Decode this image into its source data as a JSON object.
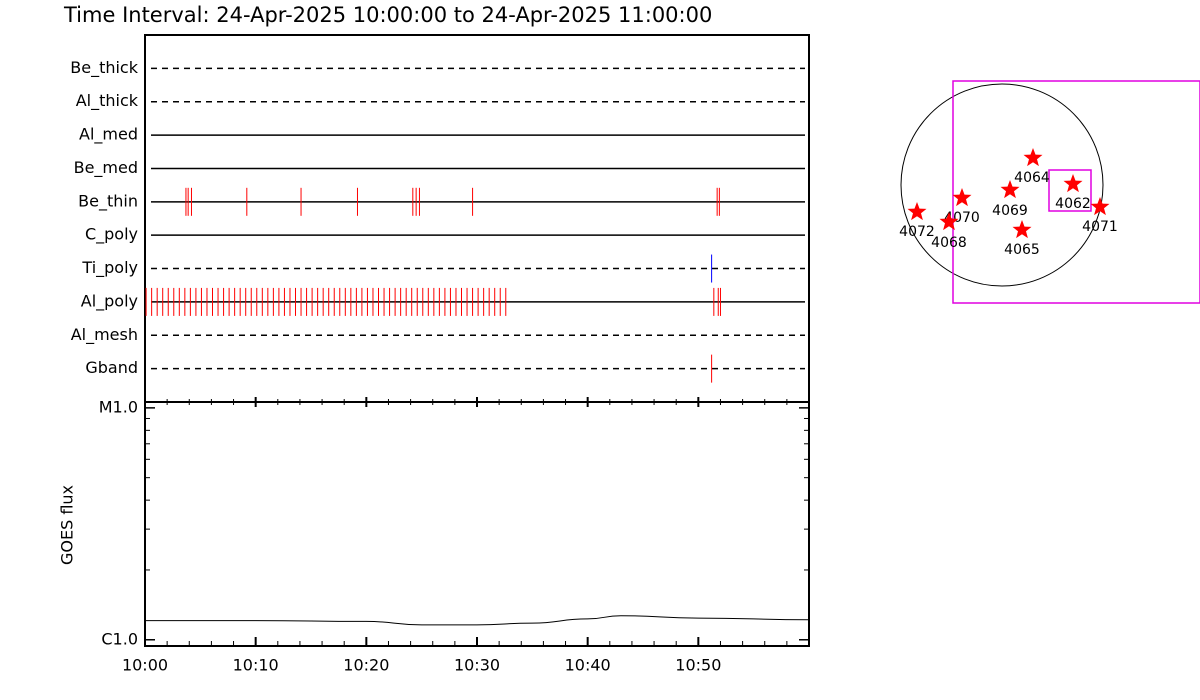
{
  "chart_data": {
    "type": "timeline",
    "title": "Time Interval: 24-Apr-2025 10:00:00 to 24-Apr-2025 11:00:00",
    "xlim": [
      0,
      60
    ],
    "xticks": [
      {
        "value": 0,
        "label": "10:00"
      },
      {
        "value": 10,
        "label": "10:10"
      },
      {
        "value": 20,
        "label": "10:20"
      },
      {
        "value": 30,
        "label": "10:30"
      },
      {
        "value": 40,
        "label": "10:40"
      },
      {
        "value": 50,
        "label": "10:50"
      }
    ],
    "xminorticks": [
      2,
      4,
      6,
      8,
      12,
      14,
      16,
      18,
      22,
      24,
      26,
      28,
      32,
      34,
      36,
      38,
      42,
      44,
      46,
      48,
      52,
      54,
      56,
      58
    ],
    "filters": [
      {
        "name": "Be_thick",
        "style": "dashed",
        "color": "#ff0000",
        "events": []
      },
      {
        "name": "Al_thick",
        "style": "dashed",
        "color": "#ff0000",
        "events": []
      },
      {
        "name": "Al_med",
        "style": "solid",
        "color": "#ff0000",
        "events": []
      },
      {
        "name": "Be_med",
        "style": "solid",
        "color": "#ff0000",
        "events": []
      },
      {
        "name": "Be_thin",
        "style": "solid",
        "color": "#ff0000",
        "events": [
          3.7,
          3.9,
          4.2,
          9.2,
          14.1,
          19.2,
          24.2,
          24.5,
          24.8,
          29.6,
          51.7,
          51.9
        ]
      },
      {
        "name": "C_poly",
        "style": "solid",
        "color": "#ff0000",
        "events": []
      },
      {
        "name": "Ti_poly",
        "style": "dashed",
        "color": "#0000ff",
        "events": [
          51.2
        ]
      },
      {
        "name": "Al_poly",
        "style": "solid",
        "color": "#ff0000",
        "events": [
          0.1,
          0.6,
          1.1,
          1.6,
          2.1,
          2.6,
          3.1,
          3.6,
          4.1,
          4.6,
          5.1,
          5.6,
          6.1,
          6.6,
          7.1,
          7.6,
          8.1,
          8.6,
          9.1,
          9.6,
          10.1,
          10.6,
          11.1,
          11.6,
          12.1,
          12.6,
          13.1,
          13.6,
          14.1,
          14.6,
          15.1,
          15.6,
          16.1,
          16.6,
          17.1,
          17.6,
          18.1,
          18.6,
          19.1,
          19.6,
          20.1,
          20.6,
          21.1,
          21.6,
          22.1,
          22.6,
          23.1,
          23.6,
          24.1,
          24.6,
          25.1,
          25.6,
          26.1,
          26.6,
          27.1,
          27.6,
          28.1,
          28.6,
          29.1,
          29.6,
          30.1,
          30.6,
          31.1,
          31.6,
          32.1,
          32.6,
          51.4,
          51.8,
          52.0
        ]
      },
      {
        "name": "Al_mesh",
        "style": "dashed",
        "color": "#ff0000",
        "events": []
      },
      {
        "name": "Gband",
        "style": "dashed",
        "color": "#ff0000",
        "events": [
          51.2
        ]
      }
    ],
    "goes": {
      "ylabel": "GOES flux",
      "log": true,
      "ylim": [
        9.4e-07,
        1.06e-05
      ],
      "yticks": [
        {
          "value": 1e-05,
          "label": "M1.0"
        },
        {
          "value": 1e-06,
          "label": "C1.0"
        }
      ],
      "yminorticks": [
        2e-06,
        3e-06,
        4e-06,
        5e-06,
        6e-06,
        7e-06,
        8e-06,
        9e-06
      ],
      "x": [
        0,
        10,
        20,
        25,
        30,
        35,
        40,
        43,
        50,
        60
      ],
      "values": [
        1.21e-06,
        1.21e-06,
        1.2e-06,
        1.16e-06,
        1.16e-06,
        1.18e-06,
        1.23e-06,
        1.27e-06,
        1.24e-06,
        1.22e-06
      ],
      "color": "#000000"
    },
    "regions": [
      {
        "label": "4064"
      },
      {
        "label": "4062"
      },
      {
        "label": "4071"
      },
      {
        "label": "4069"
      },
      {
        "label": "4070"
      },
      {
        "label": "4072"
      },
      {
        "label": "4068"
      },
      {
        "label": "4065"
      }
    ]
  }
}
